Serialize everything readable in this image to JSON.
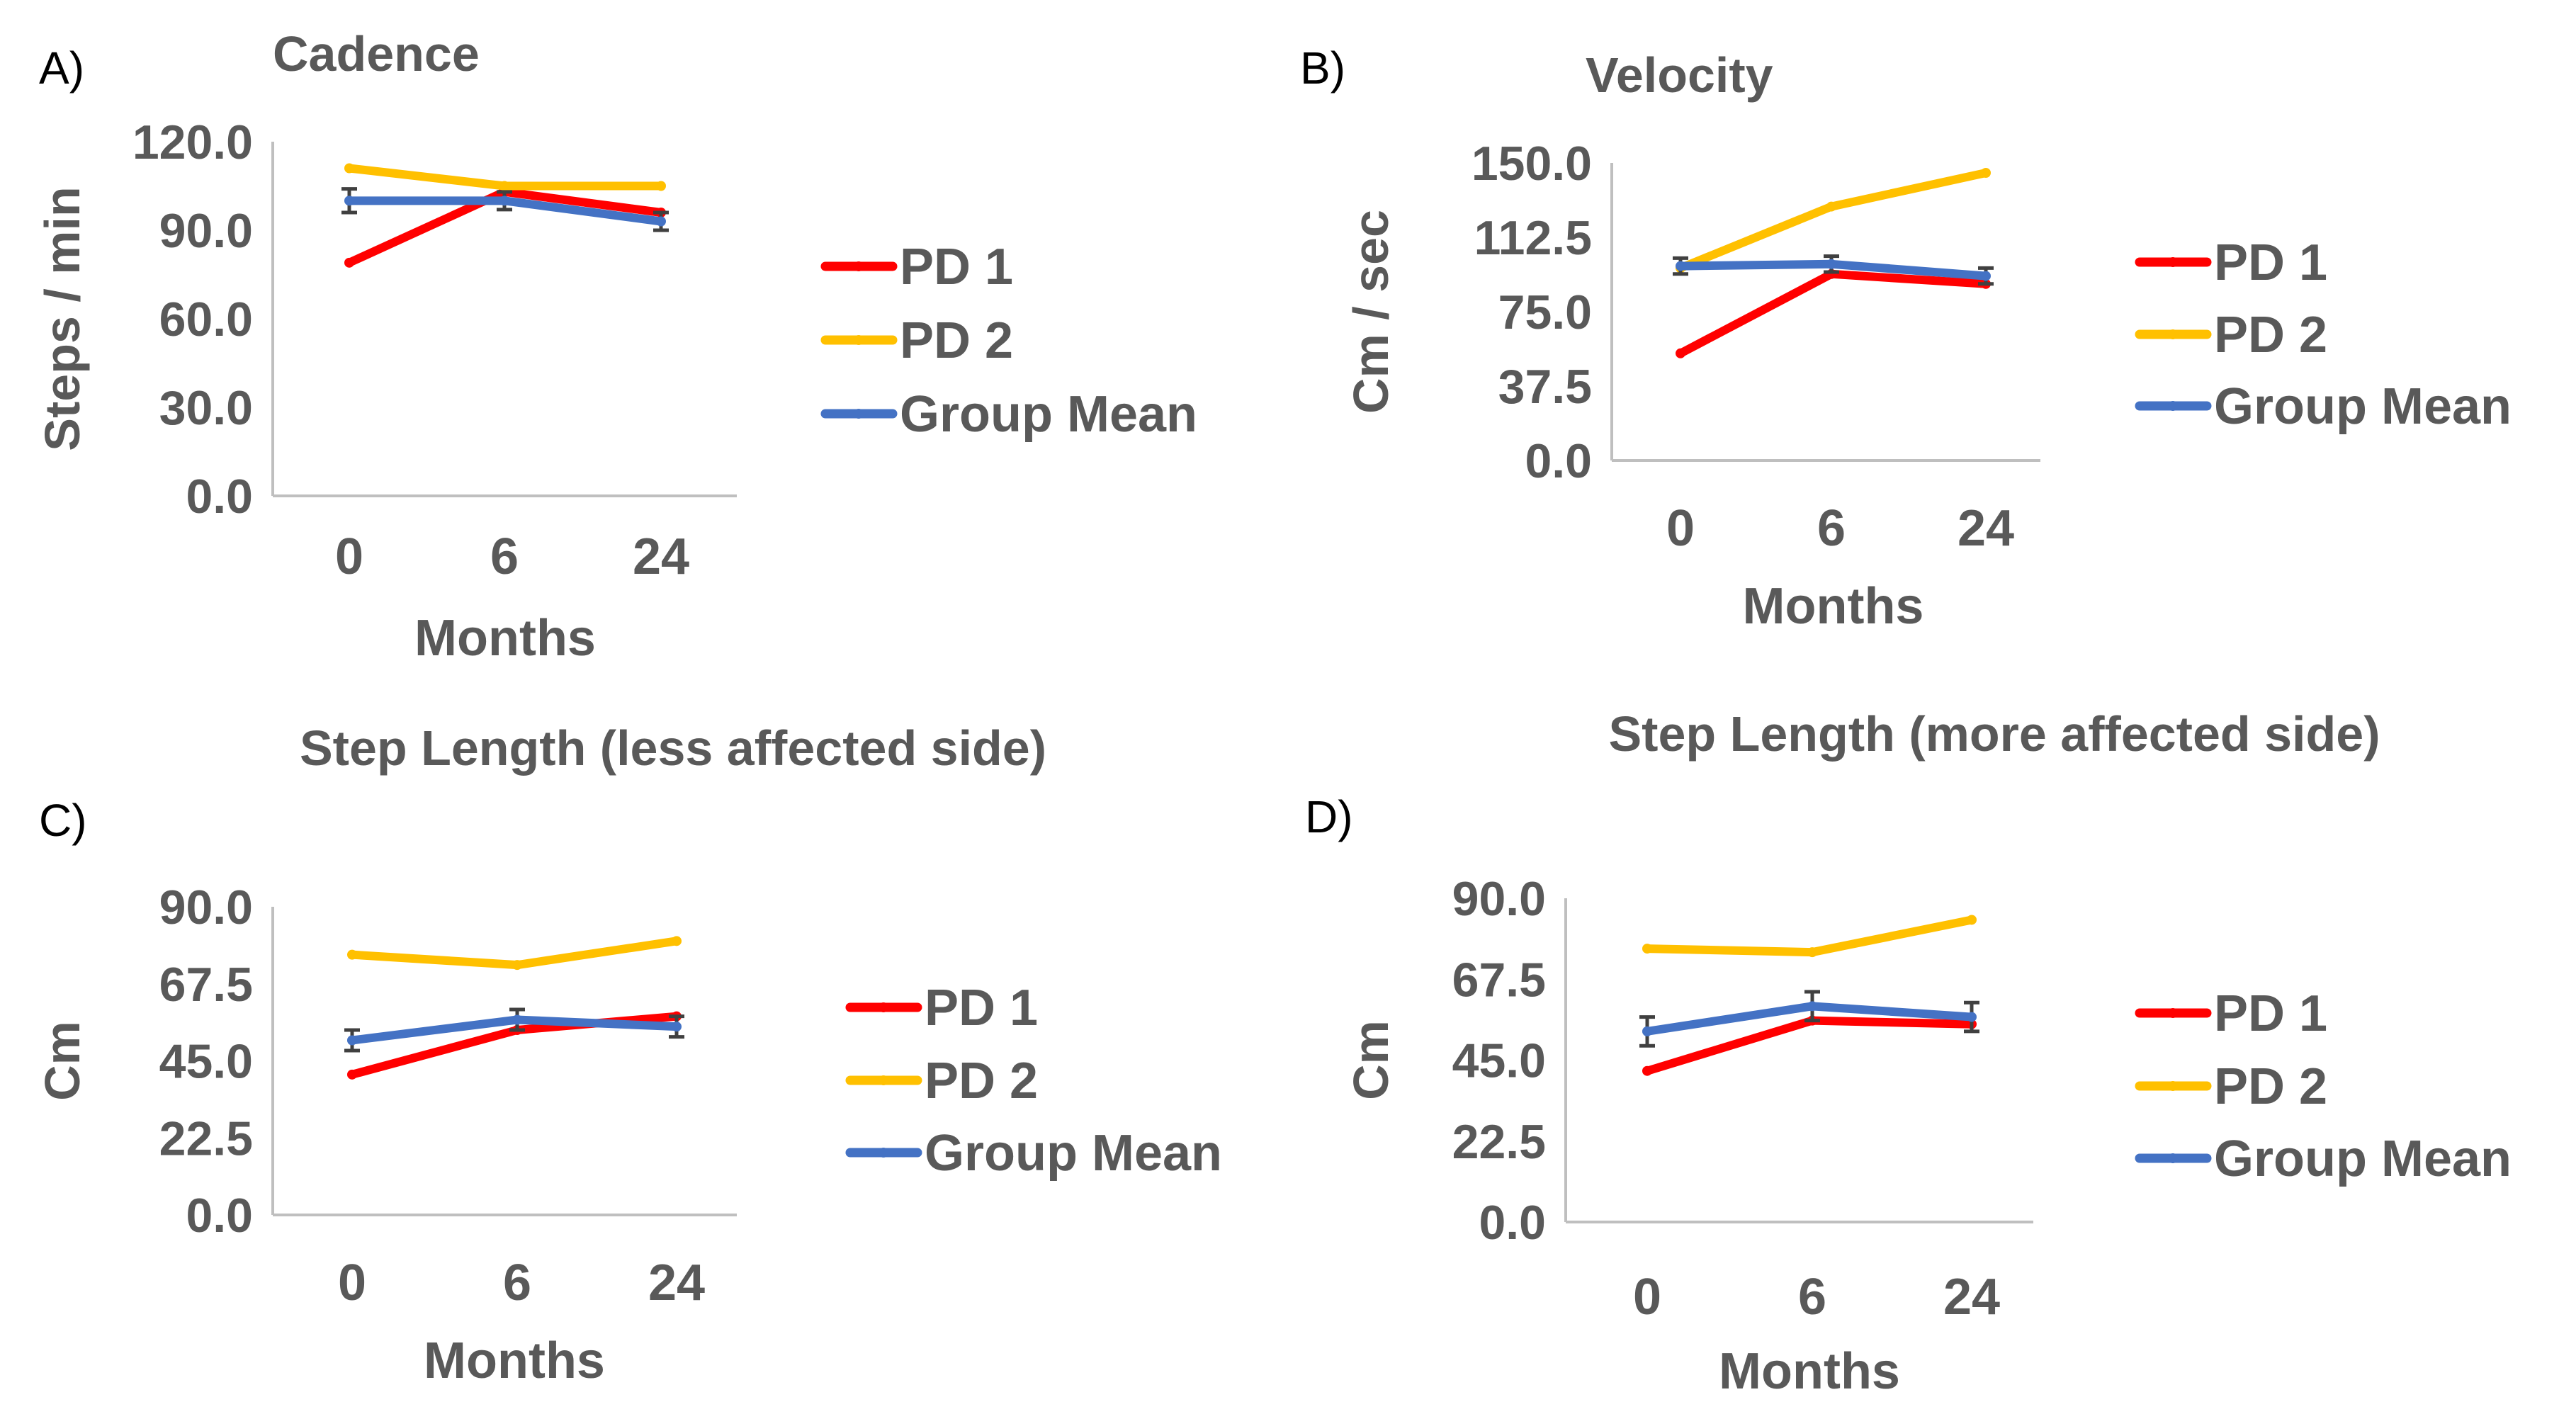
{
  "colors": {
    "pd1": "#ff0000",
    "pd2": "#ffc000",
    "group_mean": "#4472c4",
    "text": "#595959",
    "axis": "#bfbfbf",
    "error_bar": "#404040"
  },
  "chart_data": [
    {
      "id": "A",
      "type": "line",
      "panel_label": "A)",
      "title": "Cadence",
      "xlabel": "Months",
      "ylabel": "Steps / min",
      "categories": [
        "0",
        "6",
        "24"
      ],
      "yticks": [
        "0.0",
        "30.0",
        "60.0",
        "90.0",
        "120.0"
      ],
      "ylim": [
        0,
        120
      ],
      "grid": false,
      "legend": "right",
      "series": [
        {
          "name": "PD 1",
          "color": "#ff0000",
          "values": [
            79,
            103,
            96
          ]
        },
        {
          "name": "PD 2",
          "color": "#ffc000",
          "values": [
            111,
            105,
            105
          ]
        },
        {
          "name": "Group Mean",
          "color": "#4472c4",
          "values": [
            100,
            100,
            93
          ],
          "errors": [
            4,
            3,
            3
          ]
        }
      ]
    },
    {
      "id": "B",
      "type": "line",
      "panel_label": "B)",
      "title": "Velocity",
      "xlabel": "Months",
      "ylabel": "Cm / sec",
      "categories": [
        "0",
        "6",
        "24"
      ],
      "yticks": [
        "0.0",
        "37.5",
        "75.0",
        "112.5",
        "150.0"
      ],
      "ylim": [
        0,
        150
      ],
      "grid": false,
      "legend": "right",
      "series": [
        {
          "name": "PD 1",
          "color": "#ff0000",
          "values": [
            54,
            94,
            89
          ]
        },
        {
          "name": "PD 2",
          "color": "#ffc000",
          "values": [
            97,
            128,
            145
          ]
        },
        {
          "name": "Group Mean",
          "color": "#4472c4",
          "values": [
            98,
            99,
            93
          ],
          "errors": [
            4,
            4,
            4
          ]
        }
      ]
    },
    {
      "id": "C",
      "type": "line",
      "panel_label": "C)",
      "title": "Step Length (less affected side)",
      "xlabel": "Months",
      "ylabel": "Cm",
      "categories": [
        "0",
        "6",
        "24"
      ],
      "yticks": [
        "0.0",
        "22.5",
        "45.0",
        "67.5",
        "90.0"
      ],
      "ylim": [
        0,
        90
      ],
      "grid": false,
      "legend": "right",
      "series": [
        {
          "name": "PD 1",
          "color": "#ff0000",
          "values": [
            41,
            54,
            58
          ]
        },
        {
          "name": "PD 2",
          "color": "#ffc000",
          "values": [
            76,
            73,
            80
          ]
        },
        {
          "name": "Group Mean",
          "color": "#4472c4",
          "values": [
            51,
            57,
            55
          ],
          "errors": [
            3,
            3,
            3
          ]
        }
      ]
    },
    {
      "id": "D",
      "type": "line",
      "panel_label": "D)",
      "title": "Step Length (more affected side)",
      "xlabel": "Months",
      "ylabel": "Cm",
      "categories": [
        "0",
        "6",
        "24"
      ],
      "yticks": [
        "0.0",
        "22.5",
        "45.0",
        "67.5",
        "90.0"
      ],
      "ylim": [
        0,
        90
      ],
      "grid": false,
      "legend": "right",
      "series": [
        {
          "name": "PD 1",
          "color": "#ff0000",
          "values": [
            42,
            56,
            55
          ]
        },
        {
          "name": "PD 2",
          "color": "#ffc000",
          "values": [
            76,
            75,
            84
          ]
        },
        {
          "name": "Group Mean",
          "color": "#4472c4",
          "values": [
            53,
            60,
            57
          ],
          "errors": [
            4,
            4,
            4
          ]
        }
      ]
    }
  ]
}
